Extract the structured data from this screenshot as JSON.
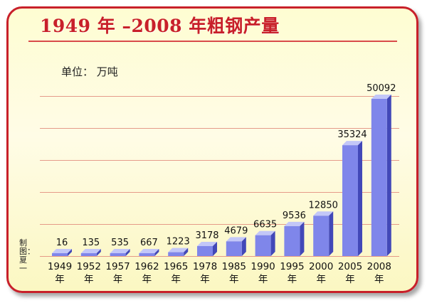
{
  "title": "1949 年 –2008 年粗钢产量",
  "unit_label": "单位： 万吨",
  "credit": "制图：夏一",
  "chart_data": {
    "type": "bar",
    "title": "1949 年 –2008 年粗钢产量",
    "ylabel": "单位： 万吨",
    "xlabel": "",
    "categories": [
      "1949年",
      "1952年",
      "1957年",
      "1962年",
      "1965年",
      "1978年",
      "1985年",
      "1990年",
      "1995年",
      "2000年",
      "2005年",
      "2008年"
    ],
    "category_years": [
      "1949",
      "1952",
      "1957",
      "1962",
      "1965",
      "1978",
      "1985",
      "1990",
      "1995",
      "2000",
      "2005",
      "2008"
    ],
    "category_suffix": "年",
    "values": [
      16,
      135,
      535,
      667,
      1223,
      3178,
      4679,
      6635,
      9536,
      12850,
      35324,
      50092
    ],
    "data_labels": [
      "16",
      "135",
      "535",
      "667",
      "1223",
      "3178",
      "4679",
      "6635",
      "9536",
      "12850",
      "35324",
      "50092"
    ],
    "ylim": [
      0,
      50092
    ],
    "grid": true,
    "colors": {
      "bar_front": "#7f86ea",
      "bar_top": "#c3c7f8",
      "bar_side": "#4248b8",
      "title": "#c8202a",
      "grid": "#e08a7a"
    }
  }
}
